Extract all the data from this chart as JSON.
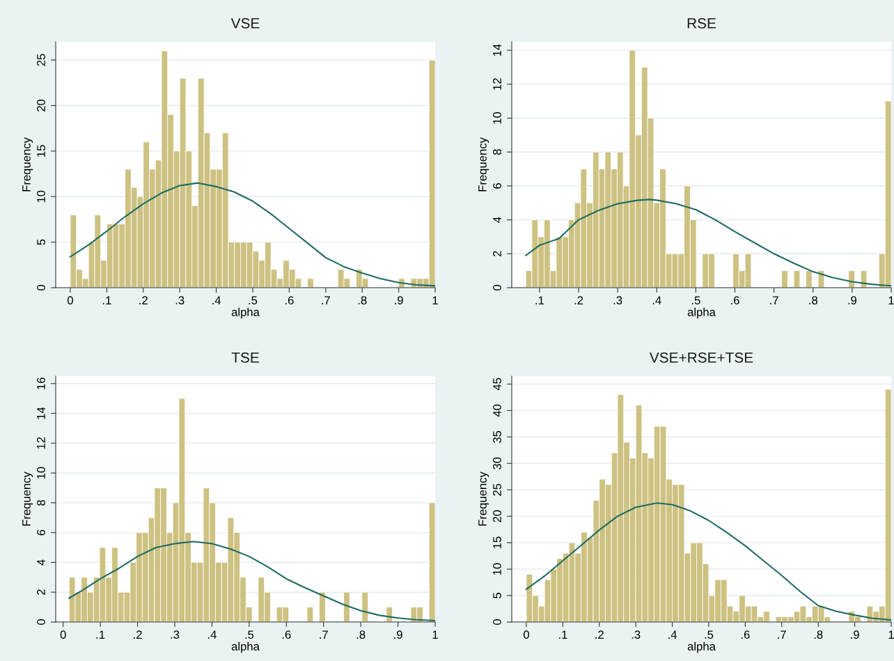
{
  "chart_data": [
    {
      "type": "histogram",
      "title": "VSE",
      "xlabel": "alpha",
      "ylabel": "Frequency",
      "grid": "y",
      "xlim": [
        -0.04,
        1
      ],
      "ylim": [
        0,
        27
      ],
      "xticks": [
        0,
        {
          "value": 0.1,
          "label": ".1"
        },
        {
          "value": 0.2,
          "label": ".2"
        },
        {
          "value": 0.3,
          "label": ".3"
        },
        {
          "value": 0.4,
          "label": ".4"
        },
        {
          "value": 0.5,
          "label": ".5"
        },
        {
          "value": 0.6,
          "label": ".6"
        },
        {
          "value": 0.7,
          "label": ".7"
        },
        {
          "value": 0.8,
          "label": ".8"
        },
        {
          "value": 0.9,
          "label": ".9"
        },
        1
      ],
      "yticks": [
        0,
        5,
        10,
        15,
        20,
        25
      ],
      "bins": [
        0,
        0.0167,
        0.0333,
        0.05,
        0.0667,
        0.0833,
        0.1,
        0.1167,
        0.1333,
        0.15,
        0.1667,
        0.1833,
        0.2,
        0.2167,
        0.2333,
        0.25,
        0.2667,
        0.2833,
        0.3,
        0.3167,
        0.3333,
        0.35,
        0.3667,
        0.3833,
        0.4,
        0.4167,
        0.4333,
        0.45,
        0.4667,
        0.4833,
        0.5,
        0.5167,
        0.5333,
        0.55,
        0.5667,
        0.5833,
        0.6,
        0.6167,
        0.6333,
        0.65,
        0.6667,
        0.6833,
        0.7,
        0.7167,
        0.7333,
        0.75,
        0.7667,
        0.7833,
        0.8,
        0.8167,
        0.8333,
        0.85,
        0.8667,
        0.8833,
        0.9,
        0.9167,
        0.9333,
        0.95,
        0.9667,
        0.9833,
        1
      ],
      "series": [
        {
          "type": "histogram",
          "color": "#cdc282",
          "values": [
            8,
            2,
            1,
            5,
            8,
            3,
            7,
            7,
            7,
            13,
            11,
            10,
            16,
            13,
            14,
            26,
            19,
            15,
            23,
            15,
            9,
            23,
            17,
            13,
            13,
            17,
            5,
            5,
            5,
            5,
            4,
            3,
            5,
            2,
            1,
            3,
            2,
            1,
            0,
            1,
            0,
            0,
            0,
            0,
            2,
            1,
            0,
            2,
            1,
            0,
            0,
            0,
            0,
            0,
            1,
            0,
            1,
            1,
            1,
            25
          ]
        },
        {
          "type": "line",
          "color": "#1e6b63",
          "x": [
            0,
            0.05,
            0.1,
            0.15,
            0.2,
            0.25,
            0.3,
            0.35,
            0.4,
            0.45,
            0.5,
            0.55,
            0.6,
            0.65,
            0.7,
            0.75,
            0.8,
            0.85,
            0.9,
            0.95,
            1
          ],
          "values": [
            3.4,
            4.7,
            6.2,
            7.8,
            9.2,
            10.4,
            11.2,
            11.5,
            11.1,
            10.5,
            9.5,
            8.1,
            6.5,
            4.9,
            3.3,
            2.3,
            1.6,
            1.0,
            0.56,
            0.3,
            0.2
          ]
        }
      ]
    },
    {
      "type": "histogram",
      "title": "RSE",
      "xlabel": "alpha",
      "ylabel": "Frequency",
      "grid": "y",
      "xlim": [
        0.029,
        1
      ],
      "ylim": [
        0,
        14.5
      ],
      "xticks": [
        {
          "value": 0.1,
          "label": ".1"
        },
        {
          "value": 0.2,
          "label": ".2"
        },
        {
          "value": 0.3,
          "label": ".3"
        },
        {
          "value": 0.4,
          "label": ".4"
        },
        {
          "value": 0.5,
          "label": ".5"
        },
        {
          "value": 0.6,
          "label": ".6"
        },
        {
          "value": 0.7,
          "label": ".7"
        },
        {
          "value": 0.8,
          "label": ".8"
        },
        {
          "value": 0.9,
          "label": ".9"
        },
        1
      ],
      "yticks": [
        0,
        2,
        4,
        6,
        8,
        10,
        12,
        14
      ],
      "bins": [
        0.065,
        0.0806,
        0.0962,
        0.1118,
        0.1273,
        0.1429,
        0.1585,
        0.1741,
        0.1897,
        0.2053,
        0.2208,
        0.2364,
        0.252,
        0.2676,
        0.2832,
        0.2988,
        0.3143,
        0.3299,
        0.3455,
        0.3611,
        0.3767,
        0.3923,
        0.4078,
        0.4234,
        0.439,
        0.4546,
        0.4702,
        0.4858,
        0.5013,
        0.5169,
        0.5325,
        0.5481,
        0.5637,
        0.5793,
        0.5948,
        0.6104,
        0.626,
        0.6416,
        0.6572,
        0.6728,
        0.6883,
        0.7039,
        0.7195,
        0.7351,
        0.7507,
        0.7663,
        0.7818,
        0.7974,
        0.813,
        0.8286,
        0.8442,
        0.8598,
        0.8753,
        0.8909,
        0.9065,
        0.9221,
        0.9377,
        0.9533,
        0.9688,
        0.9844,
        1
      ],
      "series": [
        {
          "type": "histogram",
          "color": "#cdc282",
          "values": [
            1,
            4,
            3,
            4,
            1,
            3,
            3,
            4,
            5,
            7,
            5,
            8,
            7,
            8,
            7,
            8,
            6,
            14,
            9,
            13,
            10,
            5,
            7,
            2,
            2,
            2,
            6,
            4,
            0,
            2,
            2,
            0,
            0,
            0,
            2,
            1,
            2,
            0,
            0,
            0,
            0,
            0,
            1,
            0,
            1,
            0,
            1,
            0,
            1,
            0,
            0,
            0,
            0,
            1,
            0,
            1,
            0,
            0,
            2,
            11
          ]
        },
        {
          "type": "line",
          "color": "#1e6b63",
          "x": [
            0.065,
            0.1,
            0.15,
            0.2,
            0.25,
            0.3,
            0.35,
            0.38,
            0.4,
            0.45,
            0.5,
            0.55,
            0.6,
            0.65,
            0.7,
            0.75,
            0.8,
            0.85,
            0.9,
            0.95,
            1
          ],
          "values": [
            1.9,
            2.5,
            2.9,
            4.0,
            4.55,
            4.95,
            5.15,
            5.2,
            5.16,
            4.95,
            4.6,
            4.0,
            3.3,
            2.65,
            2.0,
            1.45,
            0.94,
            0.6,
            0.35,
            0.2,
            0.11
          ]
        }
      ]
    },
    {
      "type": "histogram",
      "title": "TSE",
      "xlabel": "alpha",
      "ylabel": "Frequency",
      "grid": "y",
      "xlim": [
        -0.02,
        1
      ],
      "ylim": [
        0,
        16.5
      ],
      "xticks": [
        0,
        {
          "value": 0.1,
          "label": ".1"
        },
        {
          "value": 0.2,
          "label": ".2"
        },
        {
          "value": 0.3,
          "label": ".3"
        },
        {
          "value": 0.4,
          "label": ".4"
        },
        {
          "value": 0.5,
          "label": ".5"
        },
        {
          "value": 0.6,
          "label": ".6"
        },
        {
          "value": 0.7,
          "label": ".7"
        },
        {
          "value": 0.8,
          "label": ".8"
        },
        {
          "value": 0.9,
          "label": ".9"
        },
        1
      ],
      "yticks": [
        0,
        2,
        4,
        6,
        8,
        10,
        12,
        14,
        16
      ],
      "bins": [
        0.016,
        0.0324,
        0.0488,
        0.0652,
        0.0816,
        0.098,
        0.1144,
        0.1308,
        0.1472,
        0.1636,
        0.18,
        0.1964,
        0.2128,
        0.2292,
        0.2456,
        0.262,
        0.2784,
        0.2948,
        0.3112,
        0.3276,
        0.344,
        0.3604,
        0.3768,
        0.3932,
        0.4096,
        0.426,
        0.4424,
        0.4588,
        0.4752,
        0.4916,
        0.508,
        0.5244,
        0.5408,
        0.5572,
        0.5736,
        0.59,
        0.6064,
        0.6228,
        0.6392,
        0.6556,
        0.672,
        0.6884,
        0.7048,
        0.7212,
        0.7376,
        0.754,
        0.7704,
        0.7868,
        0.8032,
        0.8196,
        0.836,
        0.8524,
        0.8688,
        0.8852,
        0.9016,
        0.918,
        0.9344,
        0.9508,
        0.9672,
        0.9836,
        1
      ],
      "series": [
        {
          "type": "histogram",
          "color": "#cdc282",
          "values": [
            3,
            2,
            3,
            2,
            3,
            5,
            3,
            5,
            2,
            2,
            4,
            6,
            6,
            7,
            9,
            9,
            6,
            8,
            15,
            6,
            4,
            4,
            9,
            8,
            4,
            4,
            7,
            6,
            3,
            1,
            0,
            3,
            2,
            0,
            1,
            1,
            0,
            0,
            0,
            1,
            0,
            2,
            0,
            0,
            0,
            2,
            0,
            0,
            2,
            0,
            0,
            0,
            1,
            0,
            0,
            0,
            1,
            1,
            0,
            8
          ]
        },
        {
          "type": "line",
          "color": "#1e6b63",
          "x": [
            0.016,
            0.05,
            0.1,
            0.15,
            0.2,
            0.25,
            0.3,
            0.35,
            0.4,
            0.45,
            0.5,
            0.55,
            0.6,
            0.65,
            0.7,
            0.75,
            0.8,
            0.85,
            0.9,
            0.95,
            1
          ],
          "values": [
            1.6,
            2.1,
            2.9,
            3.6,
            4.4,
            5.0,
            5.26,
            5.4,
            5.26,
            4.9,
            4.4,
            3.7,
            2.9,
            2.3,
            1.75,
            1.2,
            0.76,
            0.45,
            0.27,
            0.15,
            0.09
          ]
        }
      ]
    },
    {
      "type": "histogram",
      "title": "VSE+RSE+TSE",
      "xlabel": "alpha",
      "ylabel": "Frequency",
      "grid": "y",
      "xlim": [
        -0.04,
        1
      ],
      "ylim": [
        0,
        46.5
      ],
      "xticks": [
        0,
        {
          "value": 0.1,
          "label": ".1"
        },
        {
          "value": 0.2,
          "label": ".2"
        },
        {
          "value": 0.3,
          "label": ".3"
        },
        {
          "value": 0.4,
          "label": ".4"
        },
        {
          "value": 0.5,
          "label": ".5"
        },
        {
          "value": 0.6,
          "label": ".6"
        },
        {
          "value": 0.7,
          "label": ".7"
        },
        {
          "value": 0.8,
          "label": ".8"
        },
        {
          "value": 0.9,
          "label": ".9"
        },
        1
      ],
      "yticks": [
        0,
        5,
        10,
        15,
        20,
        25,
        30,
        35,
        40,
        45
      ],
      "bins": [
        0,
        0.0167,
        0.0333,
        0.05,
        0.0667,
        0.0833,
        0.1,
        0.1167,
        0.1333,
        0.15,
        0.1667,
        0.1833,
        0.2,
        0.2167,
        0.2333,
        0.25,
        0.2667,
        0.2833,
        0.3,
        0.3167,
        0.3333,
        0.35,
        0.3667,
        0.3833,
        0.4,
        0.4167,
        0.4333,
        0.45,
        0.4667,
        0.4833,
        0.5,
        0.5167,
        0.5333,
        0.55,
        0.5667,
        0.5833,
        0.6,
        0.6167,
        0.6333,
        0.65,
        0.6667,
        0.6833,
        0.7,
        0.7167,
        0.7333,
        0.75,
        0.7667,
        0.7833,
        0.8,
        0.8167,
        0.8333,
        0.85,
        0.8667,
        0.8833,
        0.9,
        0.9167,
        0.9333,
        0.95,
        0.9667,
        0.9833,
        1
      ],
      "series": [
        {
          "type": "histogram",
          "color": "#cdc282",
          "values": [
            9,
            5,
            3,
            8,
            10,
            12,
            13,
            15,
            13,
            17,
            16,
            23,
            27,
            26,
            32,
            43,
            34,
            31,
            41,
            32,
            31,
            37,
            37,
            27,
            26,
            26,
            13,
            15,
            15,
            11,
            5,
            8,
            8,
            3,
            2,
            5,
            3,
            3,
            1,
            2,
            0,
            1,
            1,
            1,
            2,
            3,
            1,
            3,
            3,
            1,
            0,
            0,
            0,
            2,
            1,
            0,
            3,
            2,
            3,
            44
          ]
        },
        {
          "type": "line",
          "color": "#1e6b63",
          "x": [
            0,
            0.05,
            0.1,
            0.15,
            0.2,
            0.25,
            0.3,
            0.35,
            0.36,
            0.4,
            0.45,
            0.5,
            0.55,
            0.6,
            0.65,
            0.7,
            0.75,
            0.8,
            0.85,
            0.9,
            0.95,
            1
          ],
          "values": [
            6.2,
            8.7,
            11.6,
            14.5,
            17.4,
            20,
            21.7,
            22.4,
            22.5,
            22.2,
            21,
            19.2,
            16.9,
            14.4,
            11.6,
            8.8,
            5.8,
            3.1,
            2.0,
            1.3,
            0.7,
            0.4
          ]
        }
      ]
    }
  ]
}
